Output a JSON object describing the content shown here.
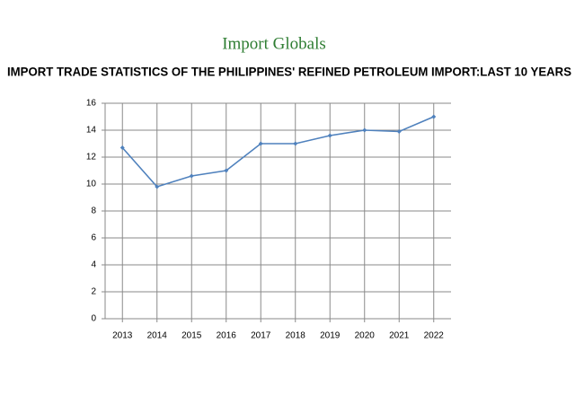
{
  "brand": "Import Globals",
  "chart_data": {
    "type": "line",
    "title": "IMPORT TRADE STATISTICS OF THE PHILIPPINES' REFINED PETROLEUM IMPORT:LAST 10 YEARS",
    "categories": [
      "2013",
      "2014",
      "2015",
      "2016",
      "2017",
      "2018",
      "2019",
      "2020",
      "2021",
      "2022"
    ],
    "values": [
      12.7,
      9.8,
      10.6,
      11.0,
      13.0,
      13.0,
      13.6,
      14.0,
      13.9,
      15.0
    ],
    "color": "#4f81bd",
    "ylim": [
      0,
      16
    ],
    "yticks": [
      0,
      2,
      4,
      6,
      8,
      10,
      12,
      14,
      16
    ],
    "grid": true
  }
}
